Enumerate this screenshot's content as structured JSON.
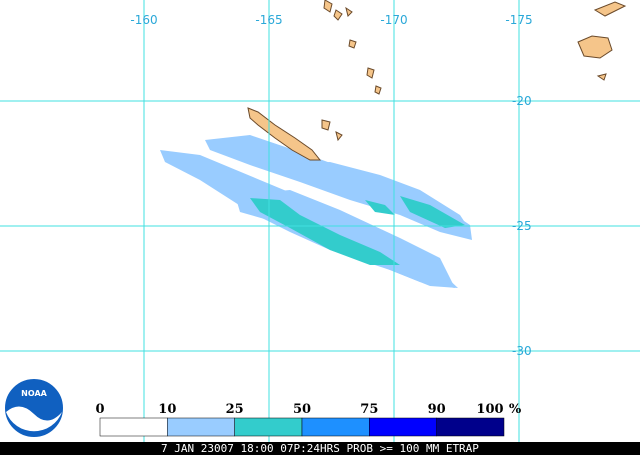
{
  "map": {
    "longitude_labels": [
      "-160",
      "-165",
      "-170",
      "-175"
    ],
    "latitude_labels": [
      "-20",
      "-25",
      "-30"
    ],
    "legend": {
      "labels": [
        "0",
        "10",
        "25",
        "50",
        "75",
        "90",
        "100"
      ],
      "unit": "%",
      "colors": [
        "#ffffff",
        "#99ccff",
        "#33cccc",
        "#1e90ff",
        "#0000ff",
        "#00008b"
      ]
    },
    "logo_text": "NOAA",
    "footer": "7 JAN 23007 18:00 07P:24HRS PROB >= 100 MM ETRAP"
  }
}
